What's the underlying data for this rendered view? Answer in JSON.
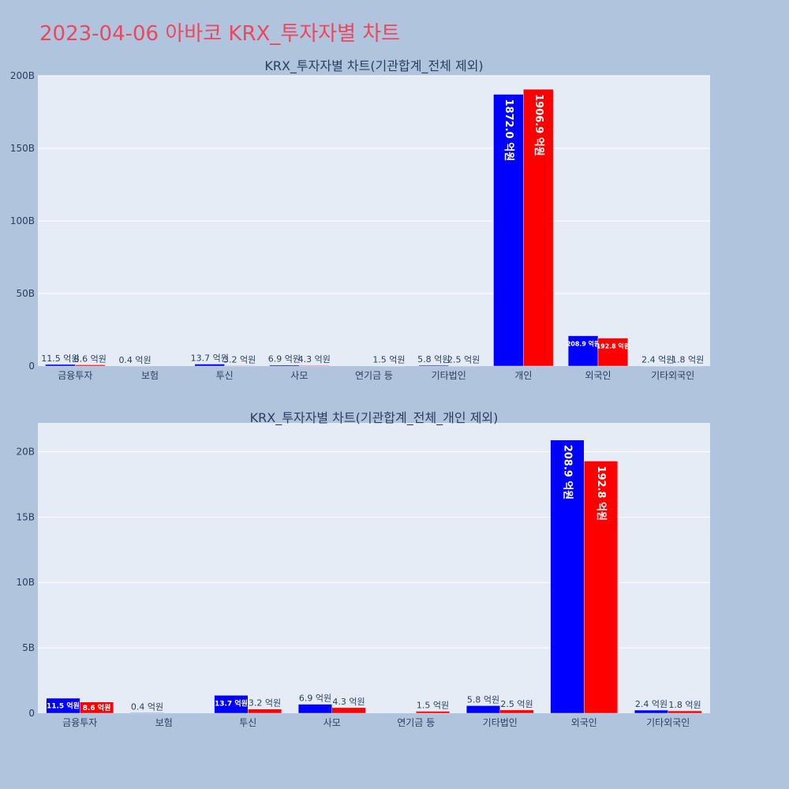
{
  "page_title": "2023-04-06 아바코 KRX_투자자별 차트",
  "colors": {
    "series_a": "#0000ff",
    "series_b": "#ff0000",
    "title": "#e8495e",
    "background": "#b0c4de",
    "plot_bg": "#e5ecf6"
  },
  "chart_data": [
    {
      "type": "bar",
      "title": "KRX_투자자별 차트(기관합계_전체 제외)",
      "categories": [
        "금융투자",
        "보험",
        "투신",
        "사모",
        "연기금 등",
        "기타법인",
        "개인",
        "외국인",
        "기타외국인"
      ],
      "series": [
        {
          "values": [
            1150000000,
            40000000,
            1370000000,
            690000000,
            0,
            580000000,
            187200000000,
            20890000000,
            240000000
          ],
          "labels": [
            "11.5 억원",
            "0.4 억원",
            "13.7 억원",
            "6.9 억원",
            "",
            "5.8 억원",
            "1872.0 억원",
            "208.9 억원",
            "2.4 억원"
          ]
        },
        {
          "values": [
            860000000,
            0,
            320000000,
            430000000,
            150000000,
            250000000,
            190690000000,
            19280000000,
            180000000
          ],
          "labels": [
            "8.6 억원",
            "",
            "3.2 억원",
            "4.3 억원",
            "1.5 억원",
            "2.5 억원",
            "1906.9 억원",
            "192.8 억원",
            "1.8 억원"
          ]
        }
      ],
      "ylim": [
        0,
        200000000000
      ],
      "yticks": [
        0,
        50000000000,
        100000000000,
        150000000000,
        200000000000
      ],
      "ytick_labels": [
        "0",
        "50B",
        "100B",
        "150B",
        "200B"
      ],
      "grid": true,
      "legend": "none"
    },
    {
      "type": "bar",
      "title": "KRX_투자자별 차트(기관합계_전체_개인 제외)",
      "categories": [
        "금융투자",
        "보험",
        "투신",
        "사모",
        "연기금 등",
        "기타법인",
        "외국인",
        "기타외국인"
      ],
      "series": [
        {
          "values": [
            1150000000,
            40000000,
            1370000000,
            690000000,
            0,
            580000000,
            20890000000,
            240000000
          ],
          "labels": [
            "11.5 억원",
            "0.4 억원",
            "13.7 억원",
            "6.9 억원",
            "",
            "5.8 억원",
            "208.9 억원",
            "2.4 억원"
          ]
        },
        {
          "values": [
            860000000,
            0,
            320000000,
            430000000,
            150000000,
            250000000,
            19280000000,
            180000000
          ],
          "labels": [
            "8.6 억원",
            "",
            "3.2 억원",
            "4.3 억원",
            "1.5 억원",
            "2.5 억원",
            "192.8 억원",
            "1.8 억원"
          ]
        }
      ],
      "ylim": [
        0,
        22200000000
      ],
      "yticks": [
        0,
        5000000000,
        10000000000,
        15000000000,
        20000000000
      ],
      "ytick_labels": [
        "0",
        "5B",
        "10B",
        "15B",
        "20B"
      ],
      "grid": true,
      "legend": "none"
    }
  ]
}
